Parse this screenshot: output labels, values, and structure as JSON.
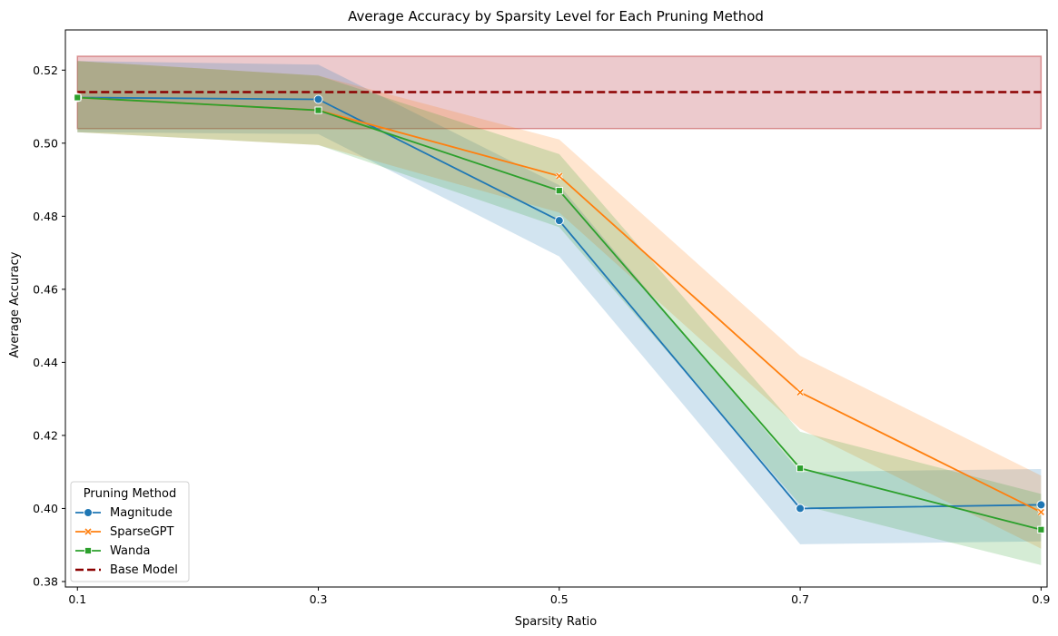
{
  "chart_data": {
    "type": "line",
    "title": "Average Accuracy by Sparsity Level for Each Pruning Method",
    "xlabel": "Sparsity Ratio",
    "ylabel": "Average Accuracy",
    "x": [
      0.1,
      0.3,
      0.5,
      0.7,
      0.9
    ],
    "x_ticks": [
      "0.1",
      "0.3",
      "0.5",
      "0.7",
      "0.9"
    ],
    "y_ticks": [
      "0.38",
      "0.40",
      "0.42",
      "0.44",
      "0.46",
      "0.48",
      "0.50",
      "0.52"
    ],
    "xlim": [
      0.09,
      0.905
    ],
    "ylim": [
      0.3785,
      0.531
    ],
    "grid": false,
    "legend": {
      "title": "Pruning Method",
      "placement": "lower-left"
    },
    "series": [
      {
        "name": "Magnitude",
        "color": "#1f77b4",
        "marker": "circle",
        "values": [
          0.5125,
          0.512,
          0.4788,
          0.4,
          0.401
        ],
        "ci_low": [
          0.503,
          0.5025,
          0.469,
          0.3902,
          0.391
        ],
        "ci_high": [
          0.5225,
          0.5215,
          0.4885,
          0.41,
          0.4108
        ]
      },
      {
        "name": "SparseGPT",
        "color": "#ff7f0e",
        "marker": "x",
        "values": [
          0.5125,
          0.509,
          0.491,
          0.4318,
          0.399
        ],
        "ci_low": [
          0.503,
          0.4995,
          0.481,
          0.4218,
          0.389
        ],
        "ci_high": [
          0.5225,
          0.5185,
          0.501,
          0.4418,
          0.409
        ]
      },
      {
        "name": "Wanda",
        "color": "#2ca02c",
        "marker": "square",
        "values": [
          0.5125,
          0.509,
          0.487,
          0.411,
          0.3942
        ],
        "ci_low": [
          0.503,
          0.4995,
          0.477,
          0.401,
          0.3845
        ],
        "ci_high": [
          0.5225,
          0.5185,
          0.497,
          0.421,
          0.404
        ]
      }
    ],
    "baseline": {
      "name": "Base Model",
      "color": "#8b0000",
      "value": 0.514,
      "ci_low": 0.504,
      "ci_high": 0.5238
    }
  }
}
